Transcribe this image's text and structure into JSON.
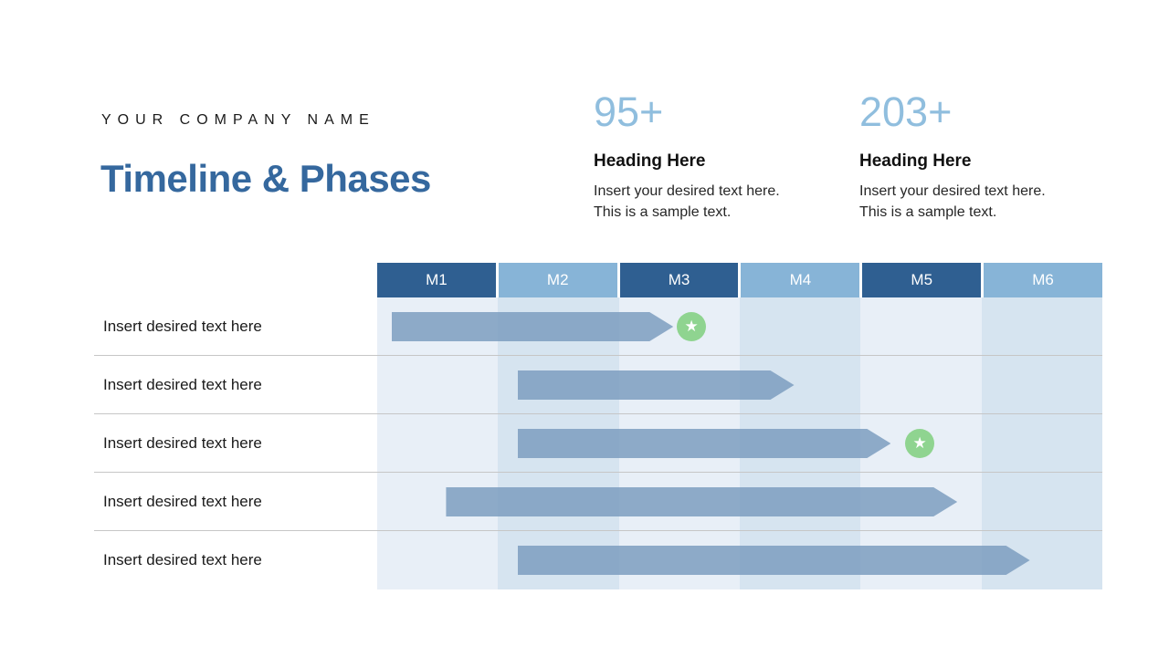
{
  "slide": {
    "company_name": "YOUR COMPANY NAME",
    "title": "Timeline & Phases"
  },
  "stats": [
    {
      "value": "95+",
      "heading": "Heading Here",
      "body": "Insert your desired text here. This is a sample text."
    },
    {
      "value": "203+",
      "heading": "Heading Here",
      "body": "Insert your desired text here. This is a sample text."
    }
  ],
  "chart_data": {
    "type": "bar",
    "subtype": "gantt-timeline",
    "title": "Timeline & Phases",
    "columns": [
      "M1",
      "M2",
      "M3",
      "M4",
      "M5",
      "M6"
    ],
    "x_range_months": [
      0,
      6
    ],
    "legend": "none",
    "grid": "column-stripes",
    "rows": [
      {
        "label": "Insert desired text here",
        "start_month": 0.12,
        "end_month": 2.45,
        "milestone_month": 2.6
      },
      {
        "label": "Insert desired text here",
        "start_month": 1.16,
        "end_month": 3.45,
        "milestone_month": null
      },
      {
        "label": "Insert desired text here",
        "start_month": 1.16,
        "end_month": 4.25,
        "milestone_month": 4.49
      },
      {
        "label": "Insert desired text here",
        "start_month": 0.57,
        "end_month": 4.8,
        "milestone_month": null
      },
      {
        "label": "Insert desired text here",
        "start_month": 1.16,
        "end_month": 5.4,
        "milestone_month": null
      }
    ]
  },
  "icons": {
    "milestone": "star-icon"
  },
  "colors": {
    "title_blue": "#35689E",
    "stat_number_blue": "#90BEDE",
    "header_dark_blue": "#2F5F91",
    "header_light_blue": "#87B4D7",
    "stripe_light": "#E8EFF7",
    "stripe_dark": "#D6E4F0",
    "bar_blue": "#7C9DBF",
    "milestone_green": "#8FD490",
    "separator_gray": "#C6C6C6",
    "text_dark": "#1A1A1A"
  }
}
